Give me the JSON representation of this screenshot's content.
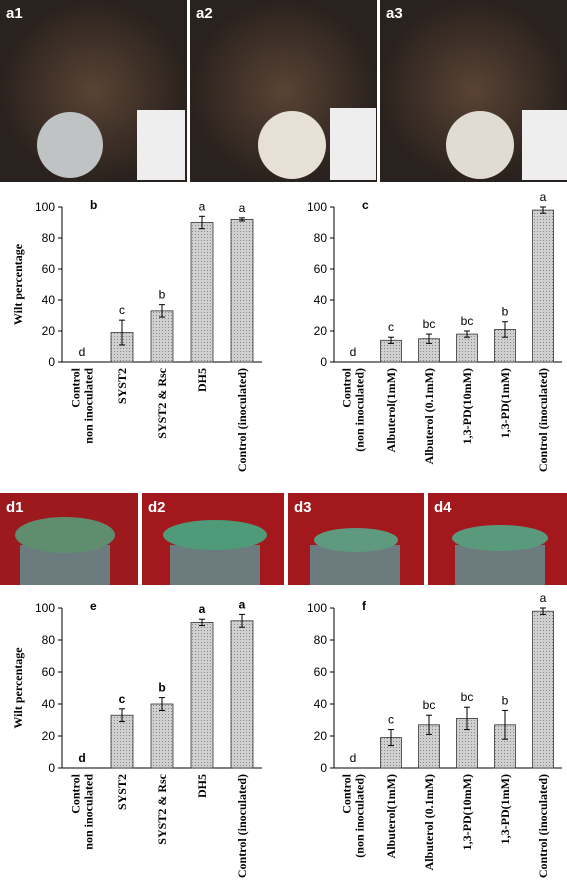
{
  "panels": {
    "a": [
      "a1",
      "a2",
      "a3"
    ],
    "d": [
      "d1",
      "d2",
      "d3",
      "d4"
    ]
  },
  "chart_data": [
    {
      "type": "bar",
      "panel": "b",
      "y_label": "Wilt percentage",
      "color": "#c4c4c4",
      "categories": [
        "Control\nnon inoculated",
        "SYST2",
        "SYST2 & Rsc",
        "DH5",
        "Control (inoculated)"
      ],
      "values": [
        0,
        19,
        33,
        90,
        92
      ],
      "errors": [
        0,
        8,
        4,
        4,
        1
      ],
      "letters": [
        "d",
        "c",
        "b",
        "a",
        "a"
      ],
      "ylim": [
        0,
        100
      ],
      "yticks": [
        0,
        20,
        40,
        60,
        80,
        100
      ]
    },
    {
      "type": "bar",
      "panel": "c",
      "color": "#c4c4c4",
      "categories": [
        "Control\n(non inoculated)",
        "Albuterol(1mM)",
        "Albuterol (0.1mM)",
        "1,3-PD(10mM)",
        "1,3-PD(1mM)",
        "Control (inoculated)"
      ],
      "values": [
        0,
        14,
        15,
        18,
        21,
        98
      ],
      "errors": [
        0,
        2,
        3,
        2,
        5,
        2
      ],
      "letters": [
        "d",
        "c",
        "bc",
        "bc",
        "b",
        "a"
      ],
      "ylim": [
        0,
        100
      ],
      "yticks": [
        0,
        20,
        40,
        60,
        80,
        100
      ]
    },
    {
      "type": "bar",
      "panel": "e",
      "y_label": "Wilt percentage",
      "color": "#c4c4c4",
      "categories": [
        "Control\nnon inoculated",
        "SYST2",
        "SYST2 & Rsc",
        "DH5",
        "Control (inoculated)"
      ],
      "values": [
        0,
        33,
        40,
        91,
        92
      ],
      "errors": [
        0,
        4,
        4,
        2,
        4
      ],
      "letters": [
        "d",
        "c",
        "b",
        "a",
        "a"
      ],
      "ylim": [
        0,
        100
      ],
      "yticks": [
        0,
        20,
        40,
        60,
        80,
        100
      ]
    },
    {
      "type": "bar",
      "panel": "f",
      "color": "#c4c4c4",
      "categories": [
        "Control\n(non inoculated)",
        "Albuterol(1mM)",
        "Albuterol (0.1mM)",
        "1,3-PD(10mM)",
        "1,3-PD(1mM)",
        "Control (inoculated)"
      ],
      "values": [
        0,
        19,
        27,
        31,
        27,
        98
      ],
      "errors": [
        0,
        5,
        6,
        7,
        9,
        2
      ],
      "letters": [
        "d",
        "c",
        "bc",
        "bc",
        "b",
        "a"
      ],
      "ylim": [
        0,
        100
      ],
      "yticks": [
        0,
        20,
        40,
        60,
        80,
        100
      ]
    }
  ]
}
